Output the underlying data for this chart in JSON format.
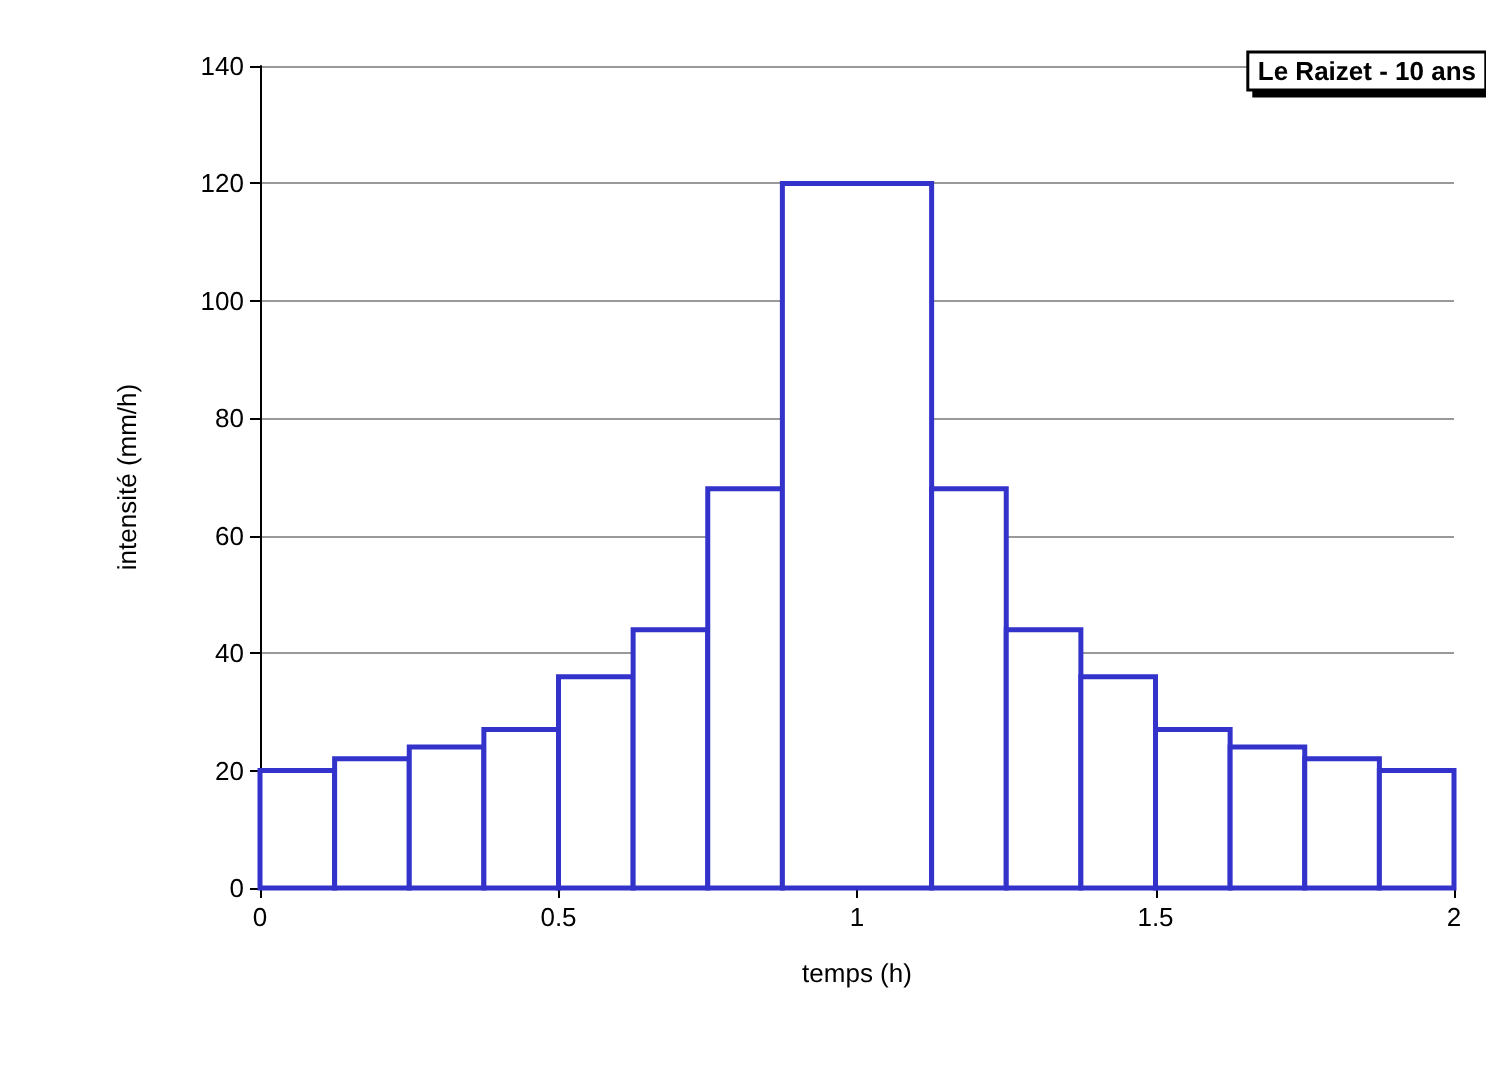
{
  "chart_data": {
    "type": "histogram",
    "title": "Le Raizet - 10 ans",
    "xlabel": "temps (h)",
    "ylabel": "intensité (mm/h)",
    "bins": [
      0,
      0.125,
      0.25,
      0.375,
      0.5,
      0.625,
      0.75,
      0.875,
      1.125,
      1.25,
      1.375,
      1.5,
      1.625,
      1.75,
      1.875,
      2
    ],
    "values": [
      20,
      22,
      24,
      27,
      36,
      44,
      68,
      120,
      68,
      44,
      36,
      27,
      24,
      22,
      20
    ],
    "color": "#3333cc",
    "xlim": [
      0,
      2
    ],
    "xticks": [
      0,
      0.5,
      1,
      1.5,
      2
    ],
    "ylim": [
      0,
      140
    ],
    "yticks": [
      0,
      20,
      40,
      60,
      80,
      100,
      120,
      140
    ],
    "grid": "y"
  }
}
